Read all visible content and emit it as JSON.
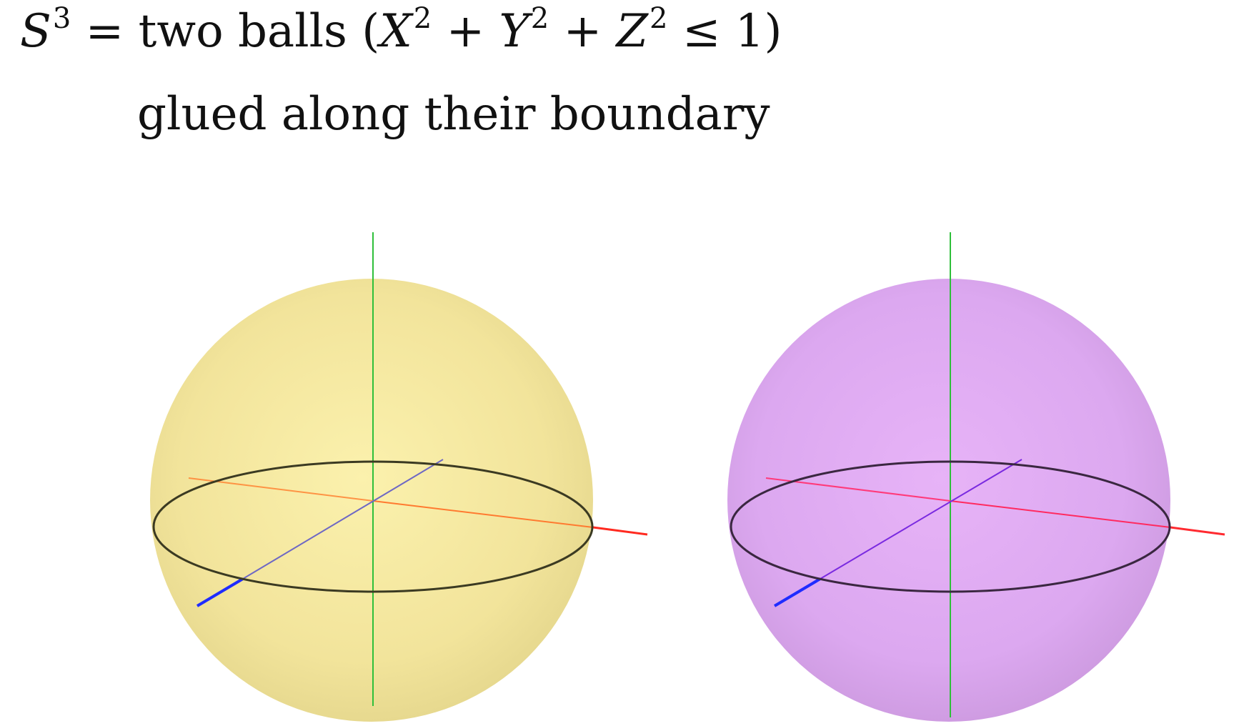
{
  "title": {
    "lhs_base": "S",
    "lhs_exp": "3",
    "eq": "=",
    "words": "two balls",
    "open_paren": "(",
    "x_var": "X",
    "x_exp": "2",
    "plus1": "+",
    "y_var": "Y",
    "y_exp": "2",
    "plus2": "+",
    "z_var": "Z",
    "z_exp": "2",
    "leq": "≤",
    "one": "1",
    "close_paren": ")"
  },
  "subtitle": "glued along their boundary",
  "balls": [
    {
      "id": "left",
      "fill": "#f3e59a",
      "edge": "#e7d78a",
      "equator": "#3b3a22"
    },
    {
      "id": "right",
      "fill": "#d8a6ee",
      "edge": "#c996de",
      "equator": "#3a2740"
    }
  ],
  "axis_colors": {
    "vertical": "#2fbf3a",
    "horizontal": "#ff3a30",
    "depth": "#1f2cff"
  }
}
